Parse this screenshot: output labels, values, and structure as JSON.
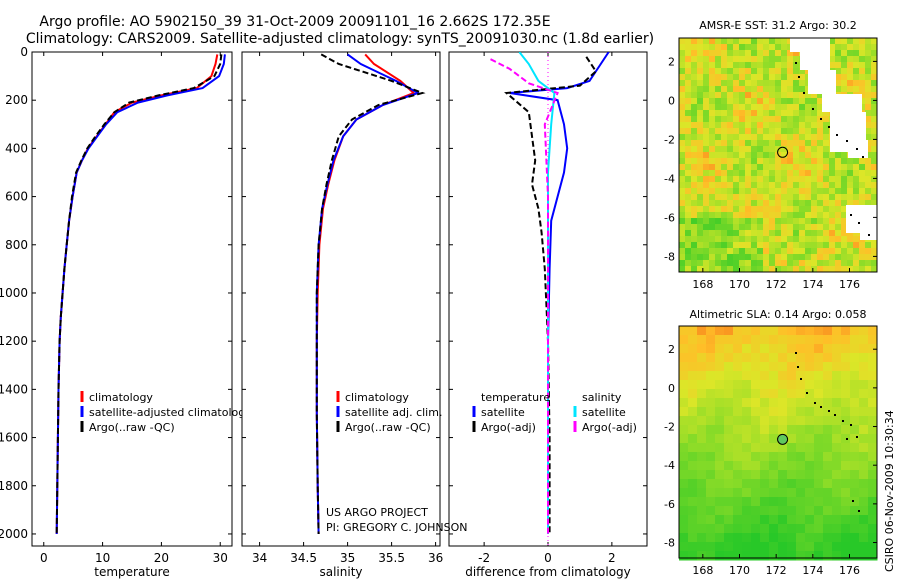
{
  "header": {
    "title_line1": "Argo profile: AO 5902150_39 31-Oct-2009 20091101_16 2.662S 172.35E",
    "title_line2": "Climatology: CARS2009. Satellite-adjusted climatology: synTS_20091030.nc (1.8d earlier)"
  },
  "side_label": "CSIRO 06-Nov-2009 10:30:34",
  "project_text": [
    "US ARGO PROJECT",
    "PI: GREGORY C. JOHNSON"
  ],
  "colors": {
    "climatology": "#ff0000",
    "satellite": "#0000ff",
    "argo": "#000000",
    "sat_salinity": "#00e5ff",
    "argo_adj_salinity": "#ff00ff"
  },
  "chart_data": [
    {
      "id": "temperature",
      "type": "line",
      "xlabel": "temperature",
      "xlim": [
        -2,
        32
      ],
      "ylim": [
        0,
        2050
      ],
      "xticks": [
        0,
        10,
        20,
        30
      ],
      "yticks": [
        0,
        200,
        400,
        600,
        800,
        1000,
        1200,
        1400,
        1600,
        1800,
        2000
      ],
      "legend": {
        "placement": "bottom-right",
        "entries": [
          "climatology",
          "satellite-adjusted climatology",
          "Argo(..raw -QC)"
        ]
      },
      "series": [
        {
          "name": "climatology",
          "color": "#ff0000",
          "dash": "",
          "x": [
            29.5,
            29.2,
            28.5,
            26.0,
            20.0,
            15.0,
            12.0,
            10.5,
            9.0,
            7.5,
            6.5,
            5.6,
            4.9,
            4.3,
            3.9,
            3.5,
            3.2,
            2.9,
            2.7,
            2.5,
            2.4,
            2.3,
            2.2
          ],
          "y": [
            10,
            50,
            100,
            150,
            180,
            210,
            250,
            300,
            350,
            400,
            450,
            500,
            600,
            700,
            800,
            900,
            1000,
            1100,
            1200,
            1400,
            1600,
            1800,
            2000
          ]
        },
        {
          "name": "satellite",
          "color": "#0000ff",
          "dash": "",
          "x": [
            30.8,
            30.6,
            29.8,
            27.0,
            21.0,
            16.0,
            12.5,
            10.6,
            9.1,
            7.6,
            6.5,
            5.6,
            4.9,
            4.3,
            3.9,
            3.5,
            3.2,
            2.9,
            2.7,
            2.5,
            2.4,
            2.3,
            2.2
          ],
          "y": [
            10,
            50,
            100,
            150,
            180,
            210,
            250,
            300,
            350,
            400,
            450,
            500,
            600,
            700,
            800,
            900,
            1000,
            1100,
            1200,
            1400,
            1600,
            1800,
            2000
          ]
        },
        {
          "name": "argo",
          "color": "#000000",
          "dash": "6,3",
          "x": [
            30.2,
            30.0,
            29.0,
            25.5,
            19.5,
            14.5,
            12.0,
            10.3,
            8.8,
            7.4,
            6.4,
            5.5,
            4.8,
            4.3,
            3.9,
            3.5,
            3.2,
            2.9,
            2.7,
            2.5,
            2.4,
            2.3,
            2.2
          ],
          "y": [
            10,
            50,
            100,
            150,
            180,
            210,
            250,
            300,
            350,
            400,
            450,
            500,
            600,
            700,
            800,
            900,
            1000,
            1100,
            1200,
            1400,
            1600,
            1800,
            2000
          ]
        }
      ]
    },
    {
      "id": "salinity",
      "type": "line",
      "xlabel": "salinity",
      "xlim": [
        33.8,
        36.05
      ],
      "ylim": [
        0,
        2050
      ],
      "xticks": [
        34,
        34.5,
        35,
        35.5,
        36
      ],
      "yticks": [
        0,
        200,
        400,
        600,
        800,
        1000,
        1200,
        1400,
        1600,
        1800,
        2000
      ],
      "legend": {
        "placement": "bottom-right",
        "entries": [
          "climatology",
          "satellite adj. clim.",
          "Argo(..raw -QC)"
        ]
      },
      "series": [
        {
          "name": "climatology",
          "color": "#ff0000",
          "dash": "",
          "x": [
            35.2,
            35.3,
            35.6,
            35.75,
            35.4,
            35.1,
            34.95,
            34.85,
            34.78,
            34.72,
            34.68,
            34.66,
            34.65,
            34.65,
            34.66,
            34.67
          ],
          "y": [
            10,
            50,
            120,
            170,
            220,
            280,
            350,
            450,
            550,
            650,
            800,
            1000,
            1200,
            1500,
            1800,
            2000
          ]
        },
        {
          "name": "satellite",
          "color": "#0000ff",
          "dash": "",
          "x": [
            35.0,
            35.15,
            35.55,
            35.8,
            35.4,
            35.1,
            34.95,
            34.84,
            34.77,
            34.71,
            34.67,
            34.65,
            34.65,
            34.65,
            34.66,
            34.67
          ],
          "y": [
            10,
            50,
            120,
            170,
            220,
            280,
            350,
            450,
            550,
            650,
            800,
            1000,
            1200,
            1500,
            1800,
            2000
          ]
        },
        {
          "name": "argo",
          "color": "#000000",
          "dash": "6,3",
          "x": [
            34.7,
            34.9,
            35.5,
            35.85,
            35.35,
            35.05,
            34.9,
            34.82,
            34.76,
            34.71,
            34.67,
            34.65,
            34.65,
            34.65,
            34.66,
            34.67
          ],
          "y": [
            10,
            50,
            120,
            170,
            220,
            280,
            350,
            450,
            550,
            650,
            800,
            1000,
            1200,
            1500,
            1800,
            2000
          ]
        }
      ]
    },
    {
      "id": "difference",
      "type": "line",
      "xlabel": "difference from climatology",
      "xlim": [
        -3.1,
        3.1
      ],
      "ylim": [
        0,
        2050
      ],
      "xticks": [
        -2,
        0,
        2
      ],
      "yticks": [
        0,
        200,
        400,
        600,
        800,
        1000,
        1200,
        1400,
        1600,
        1800,
        2000
      ],
      "legend": {
        "placement": "bottom-right",
        "temperature": [
          "temperature",
          "satellite",
          "Argo(-adj)"
        ],
        "salinity": [
          "salinity",
          "satellite",
          "Argo(-adj)"
        ]
      },
      "series": [
        {
          "name": "temperature satellite",
          "color": "#0000ff",
          "dash": "",
          "x": [
            1.9,
            1.6,
            1.3,
            0.6,
            -1.2,
            0.3,
            0.5,
            0.6,
            0.5,
            0.3,
            0.1,
            0.05,
            0.0,
            0.0,
            0.0
          ],
          "y": [
            0,
            60,
            120,
            150,
            170,
            200,
            300,
            400,
            500,
            600,
            700,
            900,
            1200,
            1600,
            2000
          ]
        },
        {
          "name": "temperature argo",
          "color": "#000000",
          "dash": "6,3",
          "x": [
            1.2,
            1.5,
            1.0,
            -1.3,
            -0.6,
            -0.5,
            -0.4,
            -0.5,
            -0.3,
            -0.2,
            -0.1,
            0.0,
            0.05,
            0.05
          ],
          "y": [
            20,
            80,
            140,
            170,
            250,
            350,
            450,
            550,
            650,
            750,
            900,
            1200,
            1600,
            2000
          ]
        },
        {
          "name": "salinity satellite",
          "color": "#00e5ff",
          "dash": "",
          "x": [
            -0.9,
            -0.6,
            -0.3,
            0.2,
            0.1,
            0.0,
            0.0,
            0.0,
            0.0,
            0.0
          ],
          "y": [
            0,
            50,
            120,
            170,
            300,
            500,
            800,
            1200,
            1600,
            2000
          ]
        },
        {
          "name": "salinity argo",
          "color": "#ff00ff",
          "dash": "6,3",
          "x": [
            -1.8,
            -1.2,
            -0.6,
            0.3,
            -0.1,
            0.0,
            0.0,
            0.0
          ],
          "y": [
            30,
            70,
            130,
            170,
            300,
            600,
            1200,
            2000
          ]
        }
      ]
    },
    {
      "id": "sst_map",
      "type": "heatmap",
      "title": "AMSR-E SST: 31.2 Argo: 30.2",
      "xlim": [
        166.7,
        177.5
      ],
      "ylim": [
        -8.8,
        3.2
      ],
      "xticks": [
        168,
        170,
        172,
        174,
        176
      ],
      "yticks": [
        2,
        0,
        -2,
        -4,
        -6,
        -8
      ],
      "argo_point": {
        "lon": 172.35,
        "lat": -2.662
      }
    },
    {
      "id": "sla_map",
      "type": "heatmap",
      "title": "Altimetric SLA: 0.14 Argo: 0.058",
      "xlim": [
        166.7,
        177.5
      ],
      "ylim": [
        -8.8,
        3.2
      ],
      "xticks": [
        168,
        170,
        172,
        174,
        176
      ],
      "yticks": [
        2,
        0,
        -2,
        -4,
        -6,
        -8
      ],
      "argo_point": {
        "lon": 172.35,
        "lat": -2.662
      }
    }
  ]
}
